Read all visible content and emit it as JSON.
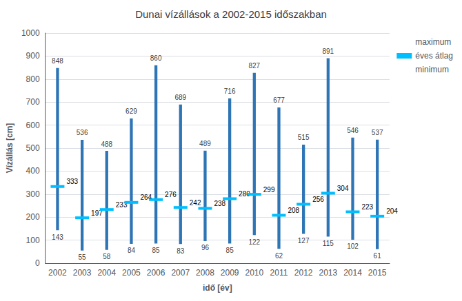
{
  "chart_data": {
    "type": "bar",
    "title": "Dunai vízállások a 2002-2015 időszakban",
    "xlabel": "idő [év]",
    "ylabel": "Vízállás [cm]",
    "categories": [
      "2002",
      "2003",
      "2004",
      "2005",
      "2006",
      "2007",
      "2008",
      "2009",
      "2010",
      "2011",
      "2012",
      "2013",
      "2014",
      "2015"
    ],
    "color": "#2E75B6",
    "series": [
      {
        "name": "maximum",
        "values": [
          848,
          536,
          488,
          629,
          860,
          689,
          489,
          716,
          827,
          677,
          515,
          891,
          546,
          537
        ]
      },
      {
        "name": "éves átlag",
        "color": "#00BFFF",
        "values": [
          333,
          197,
          233,
          264,
          276,
          242,
          238,
          280,
          299,
          208,
          256,
          304,
          223,
          204
        ]
      },
      {
        "name": "minimum",
        "values": [
          143,
          55,
          58,
          84,
          85,
          83,
          96,
          85,
          122,
          62,
          127,
          115,
          102,
          61
        ]
      }
    ],
    "ylim": [
      0,
      1000
    ],
    "yticks": [
      0,
      100,
      200,
      300,
      400,
      500,
      600,
      700,
      800,
      900,
      1000
    ],
    "grid": true,
    "legend": "right",
    "data_labels": true
  }
}
